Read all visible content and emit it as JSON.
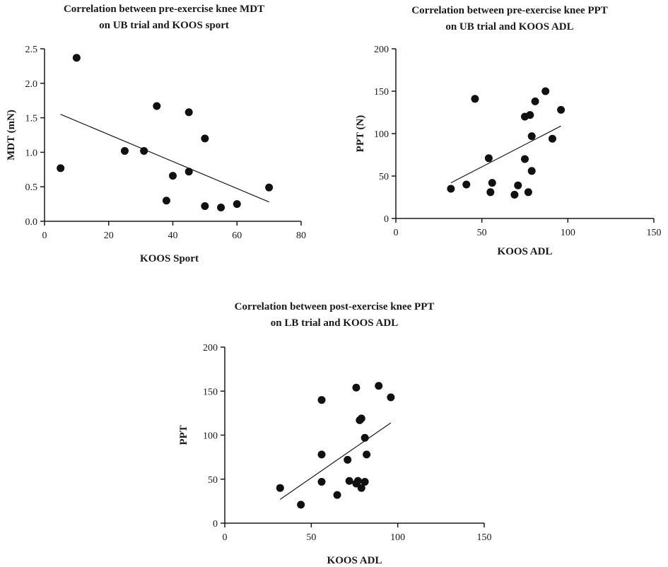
{
  "chart_data": [
    {
      "type": "scatter",
      "title": [
        "Correlation between pre-exercise knee MDT",
        "on UB trial and  KOOS sport"
      ],
      "xlabel": "KOOS Sport",
      "ylabel": "MDT (mN)",
      "xlim": [
        0,
        80
      ],
      "ylim": [
        0,
        2.5
      ],
      "xticks": [
        "0",
        "20",
        "40",
        "60",
        "80"
      ],
      "yticks": [
        "0.0",
        "0.5",
        "1.0",
        "1.5",
        "2.0",
        "2.5"
      ],
      "x": [
        5,
        10,
        25,
        31,
        35,
        38,
        40,
        45,
        45,
        50,
        50,
        55,
        60,
        70
      ],
      "y": [
        0.77,
        2.37,
        1.02,
        1.02,
        1.67,
        0.3,
        0.66,
        1.58,
        0.72,
        1.2,
        0.22,
        0.2,
        0.25,
        0.49
      ],
      "fit": [
        [
          5,
          1.55
        ],
        [
          70,
          0.28
        ]
      ]
    },
    {
      "type": "scatter",
      "title": [
        "Correlation between pre-exercise knee PPT",
        "on UB trial and KOOS ADL"
      ],
      "xlabel": "KOOS ADL",
      "ylabel": "PPT (N)",
      "xlim": [
        0,
        150
      ],
      "ylim": [
        0,
        200
      ],
      "xticks": [
        "0",
        "50",
        "100",
        "150"
      ],
      "yticks": [
        "0",
        "50",
        "100",
        "150",
        "200"
      ],
      "x": [
        32,
        41,
        46,
        54,
        55,
        56,
        69,
        71,
        75,
        75,
        77,
        78,
        79,
        79,
        81,
        87,
        91,
        96
      ],
      "y": [
        35,
        40,
        141,
        71,
        31,
        42,
        28,
        39,
        120,
        70,
        31,
        122,
        97,
        56,
        138,
        150,
        94,
        128
      ],
      "fit": [
        [
          32,
          42
        ],
        [
          96,
          109
        ]
      ]
    },
    {
      "type": "scatter",
      "title": [
        "Correlation between post-exercise knee PPT",
        "on LB trial and KOOS ADL"
      ],
      "xlabel": "KOOS ADL",
      "ylabel": "PPT",
      "xlim": [
        0,
        150
      ],
      "ylim": [
        0,
        200
      ],
      "xticks": [
        "0",
        "50",
        "100",
        "150"
      ],
      "yticks": [
        "0",
        "50",
        "100",
        "150",
        "200"
      ],
      "x": [
        32,
        44,
        56,
        56,
        56,
        65,
        71,
        72,
        76,
        76,
        77,
        78,
        79,
        79,
        81,
        81,
        82,
        89,
        96
      ],
      "y": [
        40,
        21,
        140,
        78,
        47,
        32,
        72,
        48,
        154,
        45,
        48,
        117,
        40,
        119,
        97,
        47,
        78,
        156,
        143
      ],
      "fit": [
        [
          32,
          27
        ],
        [
          96,
          114
        ]
      ]
    }
  ]
}
